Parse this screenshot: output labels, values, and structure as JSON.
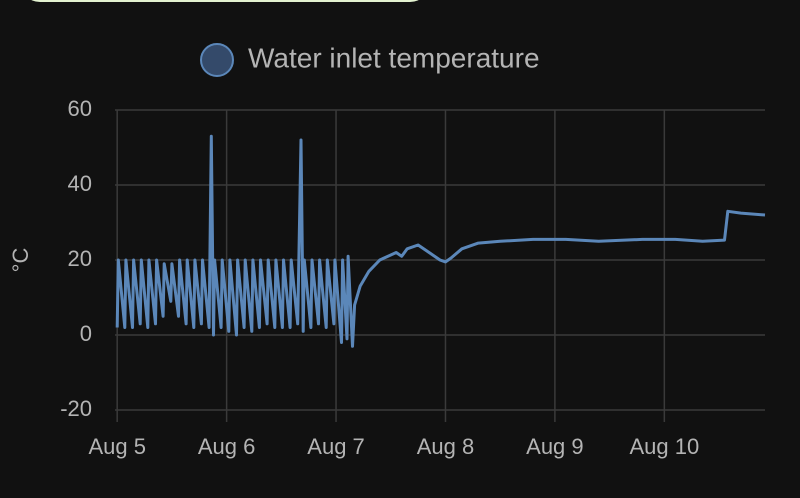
{
  "chart_data": {
    "type": "line",
    "y_label": "°C",
    "x": [
      5.0,
      5.01,
      5.07,
      5.08,
      5.14,
      5.15,
      5.21,
      5.22,
      5.28,
      5.29,
      5.35,
      5.36,
      5.42,
      5.43,
      5.49,
      5.5,
      5.56,
      5.57,
      5.63,
      5.64,
      5.7,
      5.71,
      5.77,
      5.78,
      5.84,
      5.86,
      5.88,
      5.89,
      5.95,
      5.96,
      6.02,
      6.03,
      6.09,
      6.1,
      6.16,
      6.17,
      6.23,
      6.24,
      6.3,
      6.31,
      6.37,
      6.38,
      6.44,
      6.45,
      6.51,
      6.52,
      6.58,
      6.59,
      6.65,
      6.68,
      6.7,
      6.71,
      6.77,
      6.78,
      6.84,
      6.85,
      6.91,
      6.92,
      6.98,
      6.99,
      7.05,
      7.06,
      7.1,
      7.11,
      7.15,
      7.17,
      7.22,
      7.3,
      7.4,
      7.55,
      7.6,
      7.65,
      7.75,
      7.85,
      7.95,
      8.0,
      8.05,
      8.15,
      8.3,
      8.5,
      8.8,
      9.1,
      9.4,
      9.8,
      10.1,
      10.35,
      10.55,
      10.58,
      10.7,
      10.92
    ],
    "series": [
      {
        "name": "Water inlet temperature",
        "color": "#5b87b9",
        "values": [
          2,
          20,
          2,
          20,
          2,
          20,
          3,
          20,
          2,
          20,
          3,
          20,
          5,
          19,
          9,
          19,
          5,
          20,
          3,
          20,
          2,
          20,
          3,
          20,
          2,
          53,
          0,
          20,
          2,
          20,
          1,
          20,
          0,
          20,
          2,
          20,
          1,
          20,
          2,
          20,
          3,
          20,
          2,
          20,
          2,
          20,
          2,
          20,
          3,
          52,
          1,
          20,
          2,
          20,
          3,
          20,
          2,
          20,
          3,
          20,
          -2,
          20,
          -1,
          21,
          -3,
          8,
          13,
          17,
          20,
          22,
          21,
          23,
          24,
          22,
          20,
          19.5,
          20.5,
          23,
          24.5,
          25,
          25.5,
          25.5,
          25,
          25.5,
          25.5,
          25,
          25.3,
          33,
          32.5,
          32
        ]
      }
    ],
    "xlim": [
      4.98,
      10.92
    ],
    "xticks": [
      {
        "value": 5,
        "label": "Aug 5"
      },
      {
        "value": 6,
        "label": "Aug 6"
      },
      {
        "value": 7,
        "label": "Aug 7"
      },
      {
        "value": 8,
        "label": "Aug 8"
      },
      {
        "value": 9,
        "label": "Aug 9"
      },
      {
        "value": 10,
        "label": "Aug 10"
      }
    ],
    "ylim": [
      -20,
      60
    ],
    "yticks": [
      -20,
      0,
      20,
      40,
      60
    ],
    "grid": true
  }
}
